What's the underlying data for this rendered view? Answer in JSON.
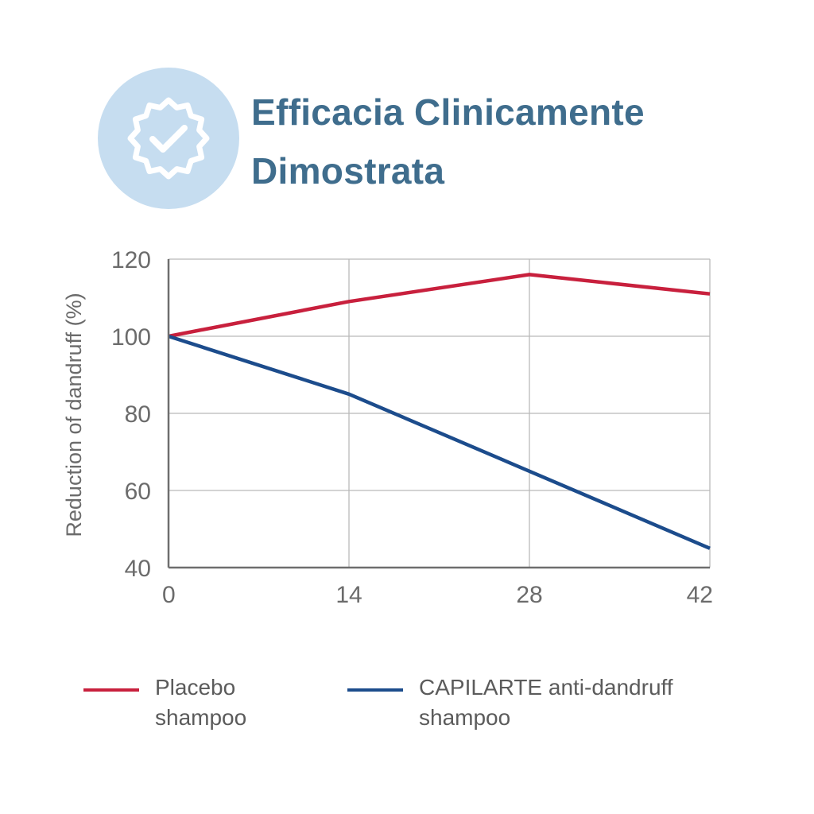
{
  "header": {
    "title_line1": "Efficacia Clinicamente",
    "title_line2": "Dimostrata",
    "badge_icon": "verified-check-badge-icon"
  },
  "colors": {
    "title": "#3f6d8d",
    "badge_bg": "#c6ddf0",
    "placebo": "#c8203d",
    "capilarte": "#1c4c8c",
    "grid": "#b9b9b9",
    "axis": "#6e6e6e",
    "tick_text": "#6b6b6b"
  },
  "chart_data": {
    "type": "line",
    "title": "",
    "xlabel": "",
    "ylabel": "Reduction of dandruff (%)",
    "x": [
      0,
      14,
      28,
      42
    ],
    "xlim": [
      0,
      42
    ],
    "ylim": [
      40,
      120
    ],
    "xticks": [
      "0",
      "14",
      "28",
      "42"
    ],
    "yticks": [
      "40",
      "60",
      "80",
      "100",
      "120"
    ],
    "grid": true,
    "legend_position": "bottom",
    "series": [
      {
        "name": "Placebo shampoo",
        "legend_line1": "Placebo",
        "legend_line2": "shampoo",
        "color": "#c8203d",
        "values": [
          100,
          109,
          116,
          111
        ]
      },
      {
        "name": "CAPILARTE anti-dandruff shampoo",
        "legend_line1": "CAPILARTE anti-dandruff",
        "legend_line2": "shampoo",
        "color": "#1c4c8c",
        "values": [
          100,
          85,
          65,
          45
        ]
      }
    ]
  }
}
